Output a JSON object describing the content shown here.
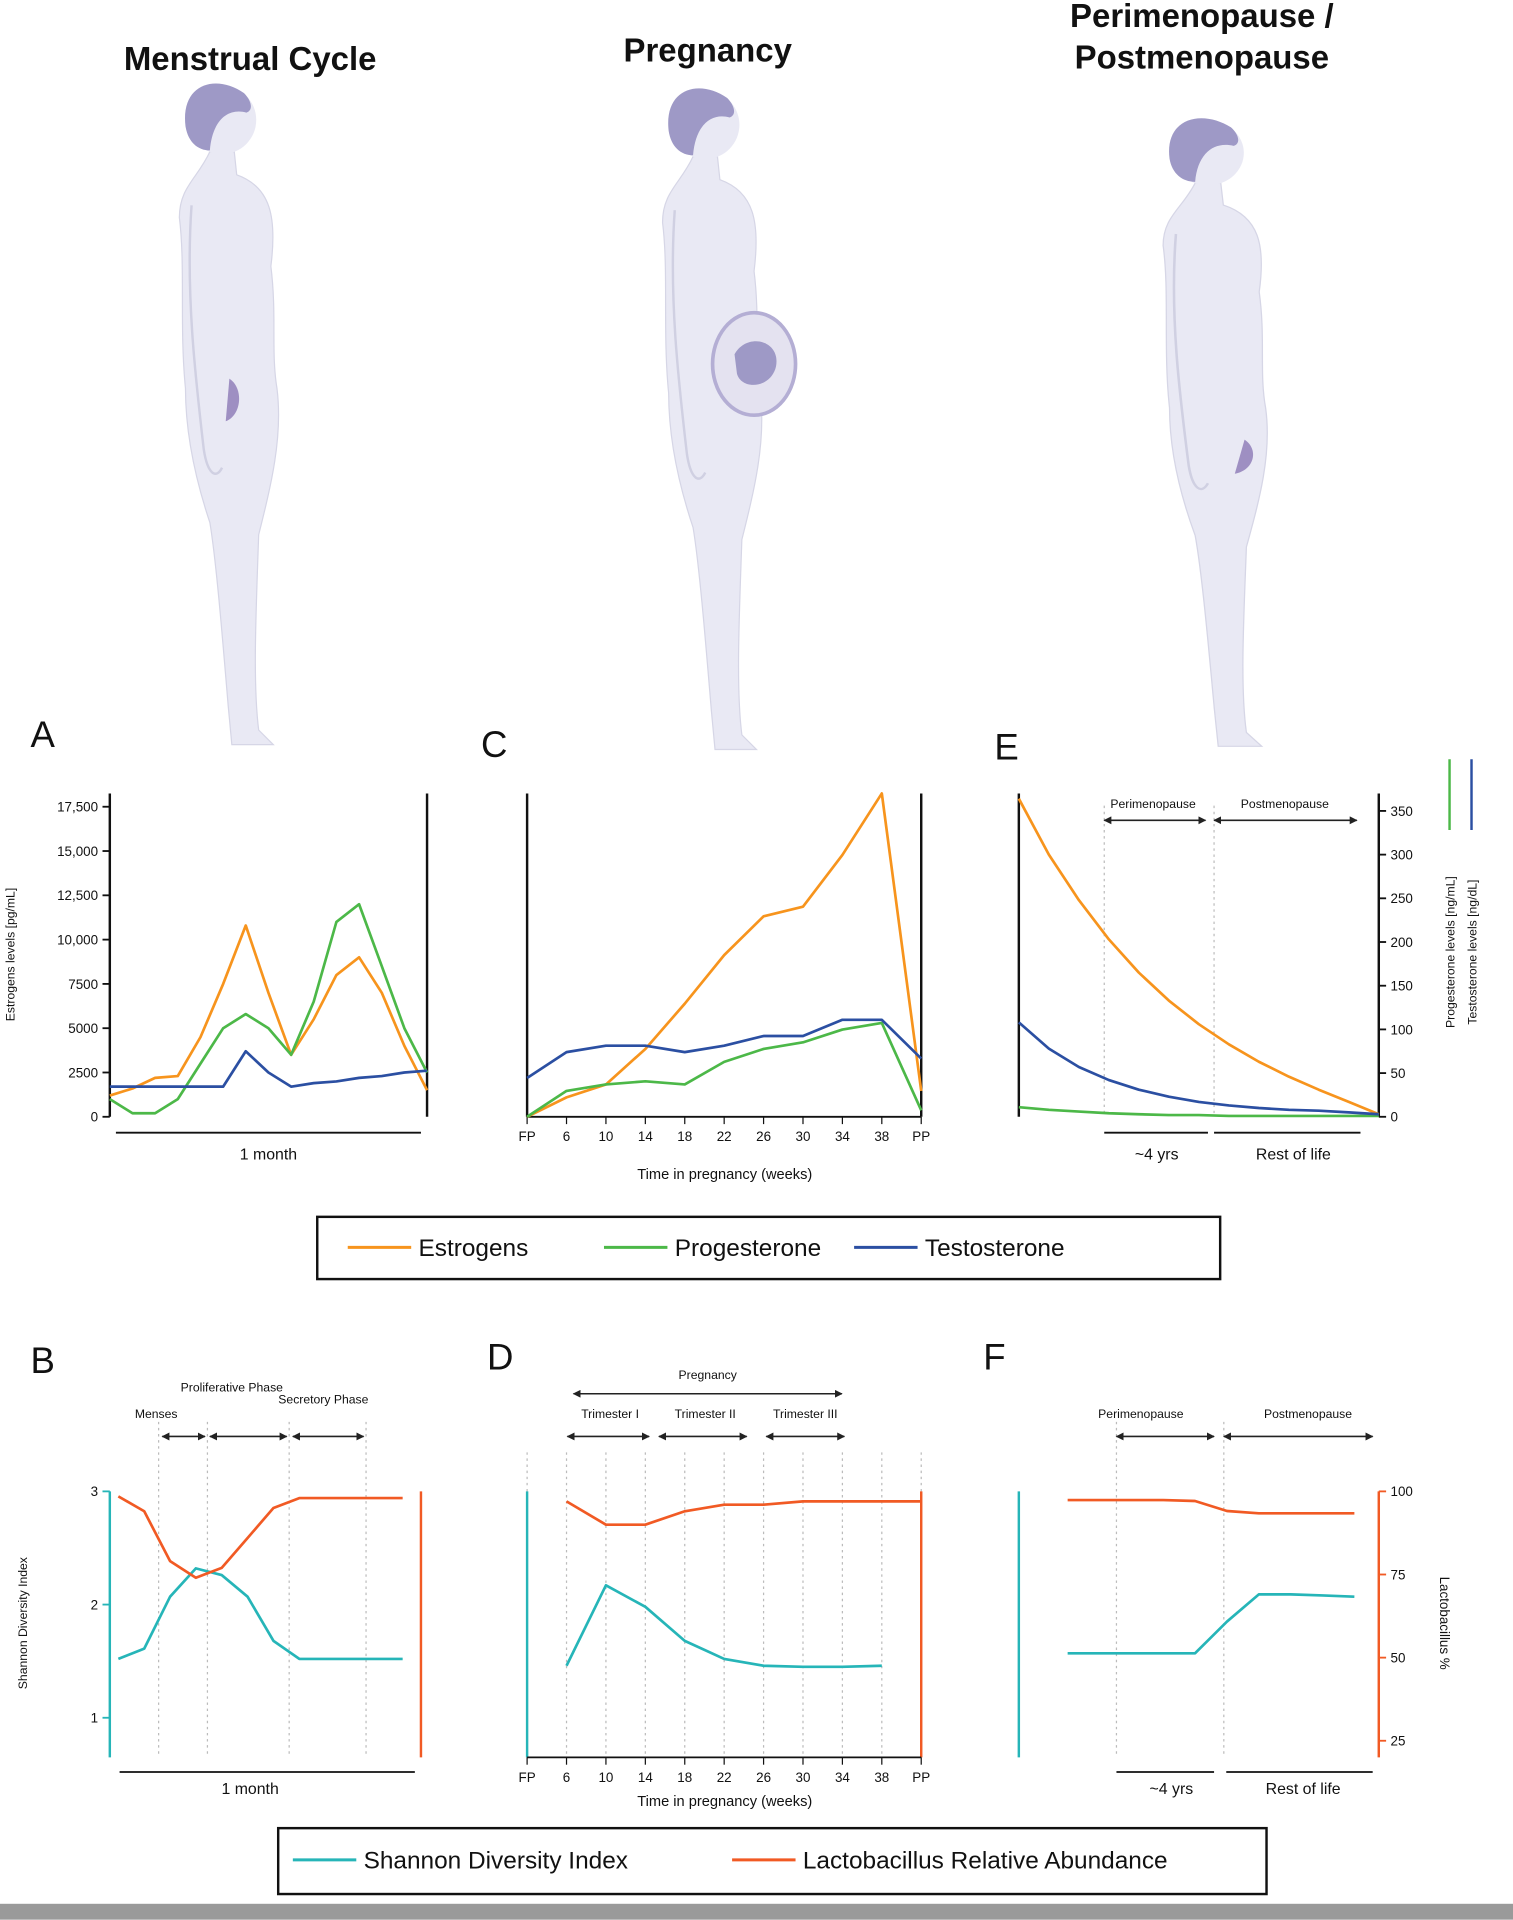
{
  "headers": [
    [
      "Menstrual Cycle"
    ],
    [
      "Pregnancy"
    ],
    [
      "Perimenopause /",
      "Postmenopause"
    ]
  ],
  "chart_data": [
    {
      "type": "line",
      "label": "A",
      "categories": [
        null,
        null,
        null,
        null,
        null,
        null,
        null,
        null,
        null,
        null,
        null,
        null,
        null,
        null,
        null
      ],
      "ylabel": "Estrogens levels [pg/mL]",
      "ylim": [
        0,
        18250
      ],
      "yticks": [
        0,
        2500,
        5000,
        7500,
        {
          "value": 10000,
          "label": "10,000"
        },
        {
          "value": 12500,
          "label": "12,500"
        },
        {
          "value": 15000,
          "label": "15,000"
        },
        {
          "value": 17500,
          "label": "17,500"
        }
      ],
      "period_labels": [
        "1 month"
      ],
      "series": [
        {
          "name": "Estrogens",
          "color": "#f7941d",
          "values": [
            1200,
            1600,
            2200,
            2300,
            4500,
            7500,
            10800,
            7000,
            3500,
            5500,
            8000,
            9000,
            7000,
            4000,
            1500
          ]
        },
        {
          "name": "Progesterone",
          "color": "#4cb848",
          "values": [
            1000,
            200,
            200,
            1000,
            3000,
            5000,
            5800,
            5000,
            3500,
            6500,
            11000,
            12000,
            8500,
            5000,
            2500
          ]
        },
        {
          "name": "Testosterone",
          "color": "#2b4fa2",
          "values": [
            1700,
            1700,
            1700,
            1700,
            1700,
            1700,
            3700,
            2500,
            1700,
            1900,
            2000,
            2200,
            2300,
            2500,
            2600
          ]
        }
      ]
    },
    {
      "type": "line",
      "label": "B",
      "categories": [
        null,
        null,
        null,
        null,
        null,
        null,
        null,
        null,
        null,
        null,
        null,
        null
      ],
      "annotations": [
        "Menses",
        "Proliferative Phase",
        "Secretory Phase"
      ],
      "period_labels": [
        "1 month"
      ],
      "ylabel": "Shannon Diversity Index",
      "ylim": [
        0.65,
        3
      ],
      "yticks": [
        1,
        2,
        3
      ],
      "y2lim": [
        20,
        100
      ],
      "series": [
        {
          "name": "Shannon Diversity Index",
          "color": "#26b5b8",
          "values": [
            1.52,
            1.61,
            2.07,
            2.32,
            2.26,
            2.07,
            1.68,
            1.52,
            1.52,
            1.52,
            1.52,
            1.52
          ]
        },
        {
          "name": "Lactobacillus Relative Abundance",
          "color": "#f15a24",
          "axis": "y2",
          "values": [
            98.5,
            94,
            79,
            74,
            77,
            86,
            95,
            98,
            98,
            98,
            98,
            98
          ]
        }
      ]
    },
    {
      "type": "line",
      "label": "C",
      "categories": [
        "FP",
        "6",
        "10",
        "14",
        "18",
        "22",
        "26",
        "30",
        "34",
        "38",
        "PP"
      ],
      "xlabel": "Time in pregnancy (weeks)",
      "ylim": [
        0,
        100
      ],
      "series": [
        {
          "name": "Estrogens",
          "color": "#f7941d",
          "values": [
            0,
            6,
            10,
            21,
            35,
            50,
            62,
            65,
            81,
            100,
            8
          ]
        },
        {
          "name": "Progesterone",
          "color": "#4cb848",
          "values": [
            0,
            8,
            10,
            11,
            10,
            17,
            21,
            23,
            27,
            29,
            2
          ]
        },
        {
          "name": "Testosterone",
          "color": "#2b4fa2",
          "values": [
            12,
            20,
            22,
            22,
            20,
            22,
            25,
            25,
            30,
            30,
            18
          ]
        }
      ]
    },
    {
      "type": "line",
      "label": "D",
      "categories": [
        "FP",
        "6",
        "10",
        "14",
        "18",
        "22",
        "26",
        "30",
        "34",
        "38",
        "PP"
      ],
      "xlabel": "Time in pregnancy (weeks)",
      "annotations": [
        "Pregnancy",
        "Trimester I",
        "Trimester II",
        "Trimester III"
      ],
      "ylim": [
        0.65,
        3
      ],
      "y2lim": [
        20,
        100
      ],
      "series": [
        {
          "name": "Shannon Diversity Index",
          "color": "#26b5b8",
          "values": [
            null,
            1.46,
            2.17,
            1.98,
            1.68,
            1.52,
            1.46,
            1.45,
            1.45,
            1.46,
            null
          ]
        },
        {
          "name": "Lactobacillus Relative Abundance",
          "color": "#f15a24",
          "axis": "y2",
          "values": [
            null,
            97,
            90,
            90,
            94,
            96,
            96,
            97,
            97,
            97,
            97
          ]
        }
      ]
    },
    {
      "type": "line",
      "label": "E",
      "categories": [
        null,
        null,
        null,
        null,
        null,
        null,
        null,
        null,
        null,
        null,
        null,
        null,
        null
      ],
      "annotations": [
        "Perimenopause",
        "Postmenopause"
      ],
      "period_labels": [
        "~4 yrs",
        "Rest of life"
      ],
      "y2labels": [
        "Progesterone levels [ng/mL]",
        "Testosterone levels [ng/dL]"
      ],
      "y2lim": [
        0,
        370
      ],
      "y2ticks": [
        0,
        50,
        100,
        150,
        200,
        250,
        300,
        350
      ],
      "series": [
        {
          "name": "Estrogens",
          "color": "#f7941d",
          "axis": "y2",
          "values": [
            364,
            300,
            248,
            203,
            165,
            133,
            106,
            83,
            63,
            46,
            31,
            17,
            3
          ]
        },
        {
          "name": "Progesterone",
          "color": "#4cb848",
          "axis": "y2",
          "values": [
            11,
            8,
            6,
            4,
            3,
            2,
            2,
            1,
            1,
            1,
            1,
            1,
            1
          ]
        },
        {
          "name": "Testosterone",
          "color": "#2b4fa2",
          "axis": "y2",
          "values": [
            108,
            78,
            57,
            42,
            31,
            23,
            17,
            13,
            10,
            8,
            7,
            5,
            3
          ]
        }
      ]
    },
    {
      "type": "line",
      "label": "F",
      "categories": [
        null,
        null,
        null,
        null,
        null,
        null,
        null,
        null,
        null,
        null
      ],
      "annotations": [
        "Perimenopause",
        "Postmenopause"
      ],
      "period_labels": [
        "~4 yrs",
        "Rest of life"
      ],
      "y2label": "Lactobacillus %",
      "ylim": [
        0.65,
        3
      ],
      "y2lim": [
        20,
        100
      ],
      "y2ticks": [
        25,
        50,
        75,
        100
      ],
      "series": [
        {
          "name": "Shannon Diversity Index",
          "color": "#26b5b8",
          "values": [
            1.57,
            1.57,
            1.57,
            1.57,
            1.57,
            1.85,
            2.09,
            2.09,
            2.08,
            2.07
          ]
        },
        {
          "name": "Lactobacillus Relative Abundance",
          "color": "#f15a24",
          "axis": "y2",
          "values": [
            97.4,
            97.4,
            97.4,
            97.4,
            97.1,
            94.1,
            93.4,
            93.4,
            93.4,
            93.4
          ]
        }
      ]
    }
  ]
}
